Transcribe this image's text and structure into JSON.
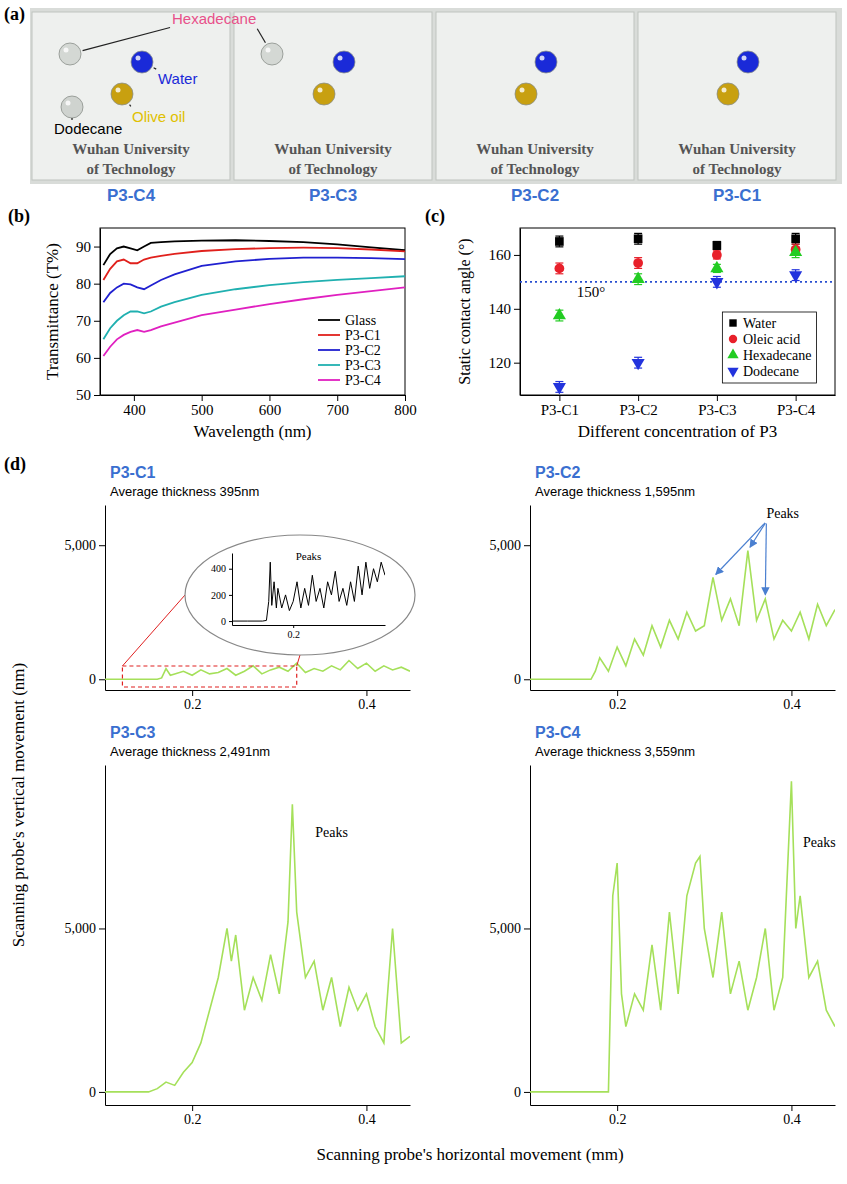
{
  "chart_data": [
    {
      "type": "photo",
      "panel_label": "(a)",
      "liquids": [
        {
          "name": "Hexadecane",
          "color": "#e8508a",
          "droplet_color": "#d4d8d4"
        },
        {
          "name": "Water",
          "color": "#1a2ad8",
          "droplet_color": "#1a2ad8"
        },
        {
          "name": "Olive oil",
          "color": "#e0c000",
          "droplet_color": "#c8a010"
        },
        {
          "name": "Dodecane",
          "color": "#000000",
          "droplet_color": "#cfd3cf"
        }
      ],
      "slide_text": [
        "Wuhan University",
        "of Technology"
      ],
      "slides": [
        {
          "label": "P3-C4",
          "droplets": [
            "Hexadecane",
            "Water",
            "Olive oil",
            "Dodecane"
          ]
        },
        {
          "label": "P3-C3",
          "droplets": [
            "Hexadecane",
            "Water",
            "Olive oil"
          ]
        },
        {
          "label": "P3-C2",
          "droplets": [
            "Water",
            "Olive oil"
          ]
        },
        {
          "label": "P3-C1",
          "droplets": [
            "Water",
            "Olive oil"
          ]
        }
      ]
    },
    {
      "type": "line",
      "panel_label": "(b)",
      "xlabel": "Wavelength (nm)",
      "ylabel": "Transmittance (T%)",
      "x": [
        355,
        365,
        375,
        385,
        395,
        405,
        415,
        425,
        440,
        460,
        500,
        550,
        600,
        650,
        700,
        750,
        800
      ],
      "series": [
        {
          "name": "Glass",
          "color": "#000000",
          "values": [
            85,
            88,
            89.5,
            90,
            89.5,
            89,
            90,
            91,
            91.2,
            91.4,
            91.6,
            91.7,
            91.5,
            91.2,
            90.6,
            89.8,
            89
          ]
        },
        {
          "name": "P3-C1",
          "color": "#e0201c",
          "values": [
            81,
            84,
            86,
            86.5,
            85.5,
            85.5,
            86.5,
            87,
            87.5,
            88,
            88.8,
            89.3,
            89.6,
            89.7,
            89.6,
            89.2,
            88.7
          ]
        },
        {
          "name": "P3-C2",
          "color": "#2020d0",
          "values": [
            75,
            77.5,
            79,
            80,
            79.8,
            79,
            78.5,
            79.5,
            81,
            82.5,
            84.8,
            86,
            86.7,
            87,
            87,
            86.9,
            86.6
          ]
        },
        {
          "name": "P3-C3",
          "color": "#20b0b0",
          "values": [
            65,
            68,
            70,
            71.5,
            72.5,
            72.5,
            72,
            72.5,
            73.8,
            75,
            77,
            78.5,
            79.6,
            80.4,
            81,
            81.5,
            82
          ]
        },
        {
          "name": "P3-C4",
          "color": "#e020c0",
          "values": [
            60.5,
            63,
            65,
            66.2,
            67,
            67.5,
            67,
            67.5,
            68.5,
            69.5,
            71.5,
            73,
            74.5,
            75.8,
            77,
            78,
            79
          ]
        }
      ],
      "xlim": [
        350,
        800
      ],
      "xticks": [
        400,
        500,
        600,
        700,
        800
      ],
      "ylim": [
        50,
        95
      ],
      "yticks": [
        50,
        60,
        70,
        80,
        90
      ],
      "legend": "lower right"
    },
    {
      "type": "scatter",
      "panel_label": "(c)",
      "xlabel": "Different concentration of P3",
      "ylabel": "Static contact angle (°)",
      "categories": [
        "P3-C1",
        "P3-C2",
        "P3-C3",
        "P3-C4"
      ],
      "series": [
        {
          "name": "Water",
          "color": "#000000",
          "marker": "square",
          "values": [
            165,
            166,
            163.5,
            166
          ],
          "errors": [
            2,
            2,
            1.5,
            2
          ]
        },
        {
          "name": "Oleic acid",
          "color": "#e8202a",
          "marker": "circle",
          "values": [
            155,
            157,
            160,
            162
          ],
          "errors": [
            2,
            2,
            1.5,
            2
          ]
        },
        {
          "name": "Hexadecane",
          "color": "#22cc22",
          "marker": "triangle-up",
          "values": [
            137.5,
            151,
            155,
            161
          ],
          "errors": [
            2,
            2,
            1.5,
            2
          ]
        },
        {
          "name": "Dodecane",
          "color": "#2233dd",
          "marker": "triangle-down",
          "values": [
            111,
            120,
            150,
            152.5
          ],
          "errors": [
            2,
            2,
            2,
            2
          ]
        }
      ],
      "reference_line": {
        "value": 150,
        "label": "150°",
        "line_style": "dotted",
        "color": "#2a4fd0"
      },
      "ylim": [
        108,
        170
      ],
      "yticks": [
        120,
        140,
        160
      ],
      "legend": "lower right"
    },
    {
      "type": "line",
      "panel_label": "(d)",
      "xlabel": "Scanning probe's horizontal movement (mm)",
      "ylabel": "Scanning probe's vertical movement (nm)",
      "subplots": [
        {
          "title": "P3-C1",
          "subtitle": "Average thickness 395nm",
          "color": "#a5e05a",
          "x": [
            0.1,
            0.12,
            0.14,
            0.16,
            0.165,
            0.17,
            0.175,
            0.18,
            0.19,
            0.2,
            0.21,
            0.22,
            0.23,
            0.24,
            0.25,
            0.26,
            0.27,
            0.28,
            0.29,
            0.3,
            0.31,
            0.32,
            0.33,
            0.34,
            0.35,
            0.36,
            0.37,
            0.38,
            0.39,
            0.4,
            0.41,
            0.42,
            0.43,
            0.44,
            0.45
          ],
          "values": [
            0,
            0,
            0,
            0,
            50,
            400,
            150,
            200,
            300,
            150,
            350,
            200,
            250,
            400,
            150,
            300,
            500,
            200,
            350,
            450,
            300,
            600,
            250,
            400,
            300,
            500,
            350,
            700,
            400,
            600,
            300,
            500,
            350,
            450,
            300
          ],
          "xlim": [
            0.1,
            0.45
          ],
          "xticks": [
            0.2,
            0.4
          ],
          "ylim": [
            -400,
            6500
          ],
          "yticks": [
            0,
            {
              "value": 5000,
              "label": "5,000"
            }
          ],
          "inset": {
            "color": "#000000",
            "x": [
              0.12,
              0.14,
              0.16,
              0.165,
              0.168,
              0.17,
              0.172,
              0.175,
              0.178,
              0.18,
              0.185,
              0.19,
              0.195,
              0.2,
              0.205,
              0.21,
              0.215,
              0.22,
              0.225,
              0.23,
              0.235,
              0.24,
              0.245,
              0.25,
              0.255,
              0.26,
              0.265,
              0.27,
              0.275,
              0.28,
              0.285,
              0.29,
              0.295,
              0.3,
              0.305,
              0.31,
              0.315,
              0.32
            ],
            "values": [
              0,
              0,
              0,
              5,
              150,
              450,
              120,
              300,
              100,
              250,
              100,
              200,
              80,
              150,
              300,
              100,
              250,
              120,
              350,
              150,
              250,
              100,
              300,
              200,
              380,
              150,
              250,
              120,
              300,
              150,
              420,
              200,
              450,
              250,
              400,
              300,
              450,
              350
            ],
            "xlim": [
              0.12,
              0.32
            ],
            "xticks": [
              0.2
            ],
            "ylim": [
              -30,
              520
            ],
            "yticks": [
              0,
              200,
              400
            ],
            "annotations": [
              {
                "text": "Peaks",
                "x": 0.22,
                "y": 470
              }
            ]
          }
        },
        {
          "title": "P3-C2",
          "subtitle": "Average thickness 1,595nm",
          "color": "#a5e05a",
          "x": [
            0.1,
            0.15,
            0.17,
            0.175,
            0.18,
            0.19,
            0.2,
            0.21,
            0.22,
            0.23,
            0.24,
            0.25,
            0.26,
            0.27,
            0.28,
            0.29,
            0.3,
            0.31,
            0.32,
            0.33,
            0.34,
            0.35,
            0.36,
            0.37,
            0.38,
            0.39,
            0.4,
            0.41,
            0.42,
            0.43,
            0.44,
            0.45
          ],
          "values": [
            0,
            0,
            0,
            300,
            800,
            300,
            1200,
            500,
            1500,
            900,
            2000,
            1200,
            2200,
            1500,
            2500,
            1800,
            2000,
            3800,
            2200,
            3000,
            2000,
            4800,
            2200,
            3000,
            1500,
            2200,
            1800,
            2500,
            1500,
            2800,
            2000,
            2600
          ],
          "xlim": [
            0.1,
            0.45
          ],
          "xticks": [
            0.2,
            0.4
          ],
          "ylim": [
            -400,
            6500
          ],
          "yticks": [
            0,
            {
              "value": 5000,
              "label": "5,000"
            }
          ],
          "annotations": [
            {
              "text": "Peaks",
              "x": 0.39,
              "y": 6000,
              "arrows": [
                [
                  0.31,
                  3800
                ],
                [
                  0.35,
                  4800
                ],
                [
                  0.37,
                  3000
                ]
              ]
            }
          ]
        },
        {
          "title": "P3-C3",
          "subtitle": "Average thickness 2,491nm",
          "color": "#a5e05a",
          "x": [
            0.1,
            0.15,
            0.16,
            0.17,
            0.18,
            0.19,
            0.2,
            0.21,
            0.22,
            0.23,
            0.24,
            0.245,
            0.25,
            0.26,
            0.27,
            0.28,
            0.29,
            0.3,
            0.31,
            0.315,
            0.32,
            0.33,
            0.34,
            0.35,
            0.36,
            0.37,
            0.38,
            0.39,
            0.4,
            0.41,
            0.42,
            0.43,
            0.44,
            0.45
          ],
          "values": [
            0,
            0,
            100,
            300,
            200,
            600,
            900,
            1500,
            2500,
            3500,
            5000,
            4000,
            4800,
            2500,
            3500,
            2800,
            4200,
            3000,
            5200,
            8800,
            5500,
            3500,
            4000,
            2500,
            3500,
            2000,
            3200,
            2500,
            3000,
            2000,
            1500,
            5000,
            1500,
            1700
          ],
          "xlim": [
            0.1,
            0.45
          ],
          "xticks": [
            0.2,
            0.4
          ],
          "ylim": [
            -400,
            10000
          ],
          "yticks": [
            0,
            {
              "value": 5000,
              "label": "5,000"
            }
          ],
          "annotations": [
            {
              "text": "Peaks",
              "x": 0.36,
              "y": 7800
            }
          ]
        },
        {
          "title": "P3-C4",
          "subtitle": "Average thickness 3,559nm",
          "color": "#a5e05a",
          "x": [
            0.1,
            0.15,
            0.19,
            0.195,
            0.2,
            0.205,
            0.21,
            0.22,
            0.23,
            0.24,
            0.25,
            0.26,
            0.27,
            0.28,
            0.29,
            0.295,
            0.3,
            0.31,
            0.32,
            0.33,
            0.34,
            0.35,
            0.36,
            0.37,
            0.38,
            0.39,
            0.4,
            0.405,
            0.41,
            0.42,
            0.43,
            0.44,
            0.45
          ],
          "values": [
            0,
            0,
            0,
            6000,
            7000,
            3000,
            2000,
            3000,
            2500,
            4500,
            2500,
            5500,
            3000,
            6000,
            7000,
            7200,
            5000,
            3500,
            5500,
            3000,
            4000,
            2500,
            3500,
            5000,
            2500,
            3500,
            9500,
            5000,
            6000,
            3500,
            4000,
            2500,
            2000
          ],
          "xlim": [
            0.1,
            0.45
          ],
          "xticks": [
            0.2,
            0.4
          ],
          "ylim": [
            -400,
            10000
          ],
          "yticks": [
            0,
            {
              "value": 5000,
              "label": "5,000"
            }
          ],
          "annotations": [
            {
              "text": "Peaks",
              "x": 0.432,
              "y": 7500
            }
          ]
        }
      ]
    }
  ]
}
